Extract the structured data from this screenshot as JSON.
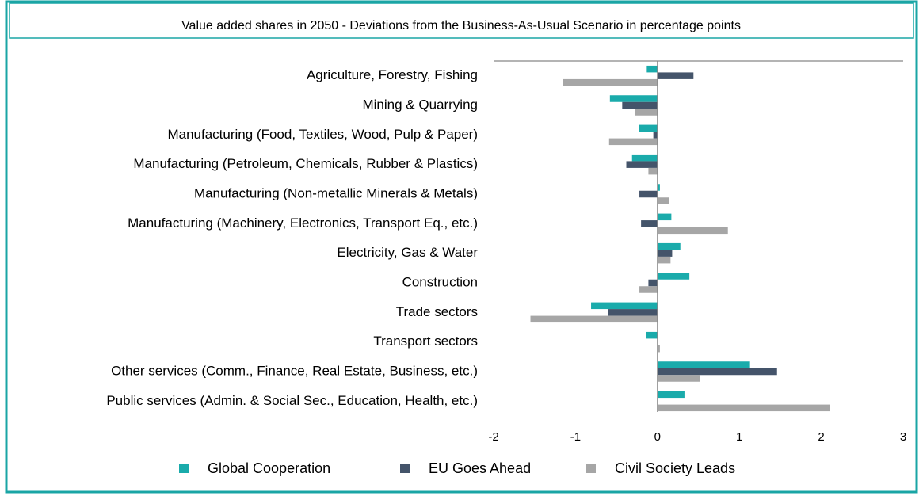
{
  "chart_data": {
    "type": "hbar",
    "title": "Value added shares in 2050 - Deviations from the Business-As-Usual Scenario in percentage points",
    "categories": [
      "Agriculture, Forestry, Fishing",
      "Mining & Quarrying",
      "Manufacturing (Food, Textiles, Wood, Pulp & Paper)",
      "Manufacturing (Petroleum, Chemicals, Rubber & Plastics)",
      "Manufacturing (Non-metallic Minerals & Metals)",
      "Manufacturing (Machinery, Electronics, Transport Eq., etc.)",
      "Electricity, Gas & Water",
      "Construction",
      "Trade sectors",
      "Transport sectors",
      "Other services (Comm., Finance, Real Estate, Business, etc.)",
      "Public services (Admin. & Social Sec., Education, Health, etc.)"
    ],
    "series": [
      {
        "name": "Global Cooperation",
        "color": "#1aabab",
        "values": [
          -0.13,
          -0.58,
          -0.23,
          -0.31,
          0.03,
          0.17,
          0.28,
          0.39,
          -0.81,
          -0.14,
          1.13,
          0.33
        ]
      },
      {
        "name": "EU Goes Ahead",
        "color": "#44546a",
        "values": [
          0.44,
          -0.43,
          -0.05,
          -0.38,
          -0.22,
          -0.2,
          0.18,
          -0.11,
          -0.6,
          0,
          1.46,
          0
        ]
      },
      {
        "name": "Civil Society Leads",
        "color": "#a6a6a6",
        "values": [
          -1.15,
          -0.27,
          -0.59,
          -0.11,
          0.14,
          0.86,
          0.16,
          -0.22,
          -1.55,
          0.03,
          0.52,
          2.11
        ]
      }
    ],
    "xlim": [
      -2,
      3
    ],
    "xticks": [
      -2,
      -1,
      0,
      1,
      2,
      3
    ],
    "legend": "bottom"
  }
}
